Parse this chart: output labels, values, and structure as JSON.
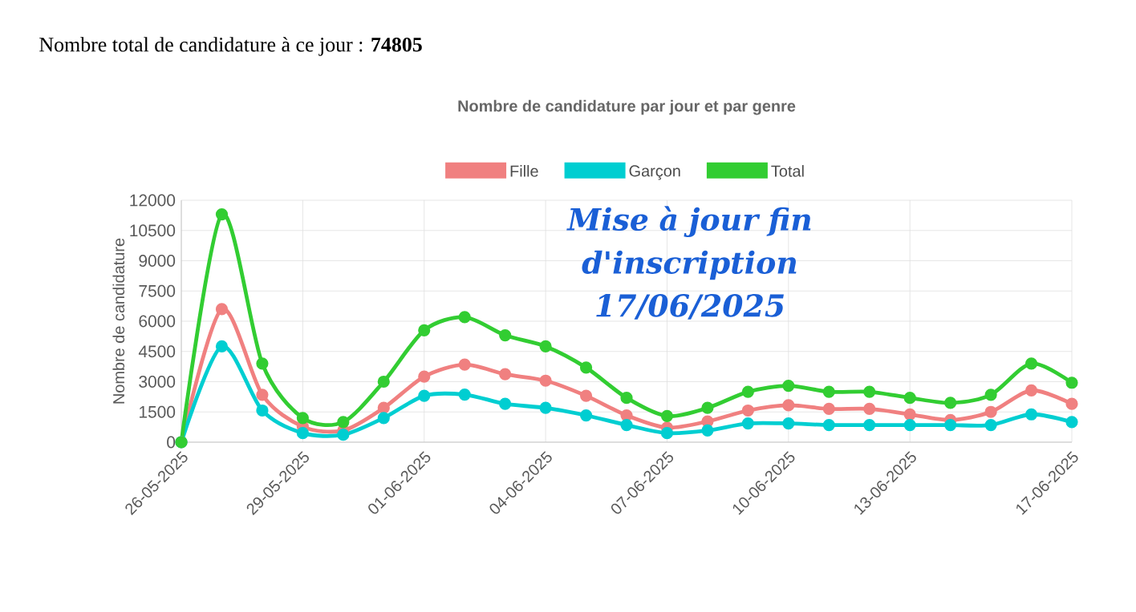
{
  "chart_data": {
    "type": "line",
    "title": "Nombre de candidature par jour et par genre",
    "ylabel": "Nombre de candidature",
    "annotations": [
      "Nombre total de candidature à ce jour : **74805**",
      "Mise à jour fin d'inscription 17/06/2025"
    ],
    "categories": [
      "26-05-2025",
      null,
      null,
      "29-05-2025",
      null,
      null,
      "01-06-2025",
      null,
      null,
      "04-06-2025",
      null,
      null,
      "07-06-2025",
      null,
      null,
      "10-06-2025",
      null,
      null,
      "13-06-2025",
      null,
      null,
      null,
      "17-06-2025"
    ],
    "series": [
      {
        "name": "Fille",
        "color": "#f08080",
        "values": [
          0,
          6600,
          2350,
          770,
          580,
          1700,
          3250,
          3850,
          3370,
          3050,
          2300,
          1330,
          720,
          1030,
          1570,
          1830,
          1650,
          1650,
          1380,
          1100,
          1500,
          2570,
          1900
        ]
      },
      {
        "name": "Garçon",
        "color": "#00ced1",
        "values": [
          0,
          4750,
          1570,
          450,
          370,
          1200,
          2300,
          2360,
          1900,
          1700,
          1330,
          850,
          450,
          580,
          930,
          930,
          850,
          850,
          850,
          850,
          850,
          1380,
          1000
        ]
      },
      {
        "name": "Total",
        "color": "#32cd32",
        "values": [
          0,
          11300,
          3900,
          1200,
          1000,
          3000,
          5550,
          6200,
          5300,
          4750,
          3700,
          2200,
          1300,
          1700,
          2500,
          2800,
          2500,
          2500,
          2200,
          1950,
          2350,
          3900,
          2950
        ]
      }
    ],
    "ylim": [
      0,
      12000
    ],
    "yticks": [
      0,
      1500,
      3000,
      4500,
      6000,
      7500,
      9000,
      10500,
      12000
    ],
    "grid": true,
    "legend": "top",
    "marker": "circle",
    "line_style": "solid"
  }
}
